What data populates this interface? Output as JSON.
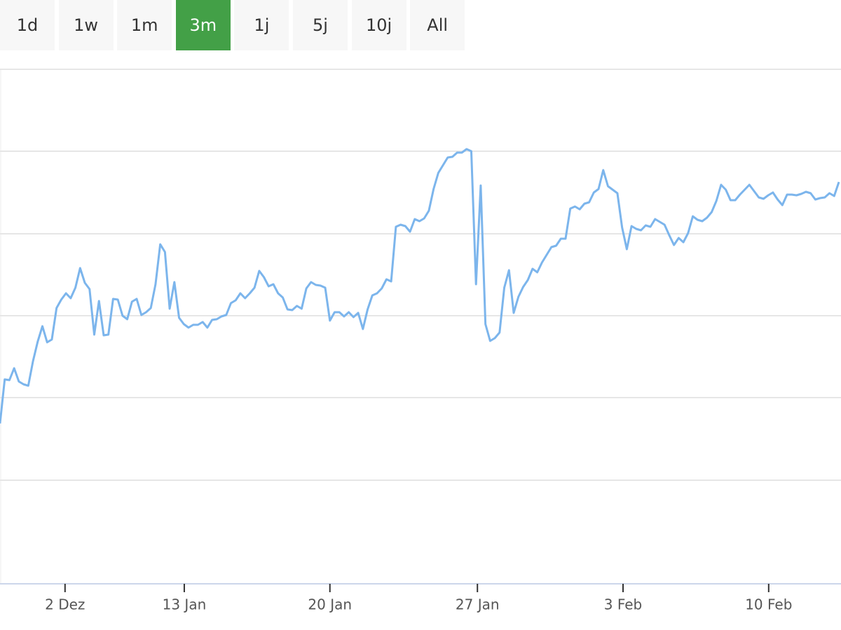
{
  "range_buttons": [
    "1d",
    "1w",
    "1m",
    "3m",
    "1j",
    "5j",
    "10j",
    "All"
  ],
  "active_range": 3,
  "chart_data": {
    "type": "line",
    "x": [
      0,
      1,
      2,
      3,
      4,
      5,
      6,
      7,
      8,
      9,
      10,
      11,
      12,
      13,
      14,
      15,
      16,
      17,
      18,
      19,
      20,
      21,
      22,
      23,
      24,
      25,
      26,
      27,
      28,
      29,
      30,
      31,
      32,
      33,
      34,
      35,
      36,
      37,
      38,
      39,
      40,
      41,
      42,
      43,
      44,
      45,
      46,
      47,
      48,
      49,
      50,
      51,
      52,
      53,
      54,
      55,
      56,
      57,
      58,
      59,
      60,
      61,
      62,
      63,
      64,
      65,
      66,
      67,
      68,
      69,
      70,
      71,
      72,
      73,
      74,
      75,
      76,
      77,
      78,
      79,
      80,
      81,
      82,
      83,
      84,
      85,
      86,
      87,
      88,
      89,
      90,
      91,
      92,
      93,
      94,
      95,
      96,
      97,
      98,
      99,
      100,
      101,
      102,
      103,
      104,
      105,
      106,
      107,
      108,
      109,
      110,
      111,
      112,
      113,
      114,
      115,
      116,
      117,
      118,
      119,
      120,
      121,
      122,
      123,
      124,
      125,
      126,
      127,
      128,
      129,
      130,
      131,
      132,
      133,
      134,
      135,
      136,
      137,
      138,
      139,
      140,
      141,
      142,
      143,
      144,
      145,
      146,
      147,
      148,
      149,
      150,
      151,
      152,
      153,
      154,
      155,
      156,
      157,
      158,
      159,
      160,
      161,
      162,
      163,
      164,
      165,
      166,
      167,
      168,
      169,
      170,
      171,
      172,
      173,
      174,
      175,
      176,
      177,
      178
    ],
    "series": [
      {
        "color": "#7cb5ec",
        "values": [
          229,
          292,
          291,
          308,
          289,
          285,
          283,
          318,
          346,
          368,
          345,
          349,
          394,
          406,
          415,
          408,
          423,
          451,
          430,
          421,
          356,
          404,
          355,
          356,
          407,
          406,
          383,
          378,
          403,
          407,
          384,
          388,
          394,
          428,
          485,
          474,
          393,
          431,
          380,
          371,
          366,
          370,
          370,
          374,
          366,
          377,
          378,
          382,
          384,
          401,
          405,
          415,
          408,
          415,
          423,
          447,
          438,
          425,
          428,
          415,
          409,
          392,
          391,
          397,
          393,
          422,
          431,
          427,
          426,
          423,
          376,
          388,
          388,
          382,
          388,
          381,
          387,
          364,
          392,
          412,
          415,
          422,
          435,
          432,
          510,
          513,
          511,
          503,
          521,
          518,
          522,
          533,
          564,
          587,
          598,
          609,
          610,
          616,
          616,
          621,
          618,
          428,
          569,
          371,
          347,
          351,
          359,
          423,
          448,
          387,
          410,
          424,
          434,
          450,
          445,
          459,
          470,
          481,
          483,
          493,
          493,
          536,
          539,
          535,
          543,
          545,
          559,
          564,
          591,
          568,
          563,
          558,
          509,
          478,
          511,
          507,
          505,
          512,
          510,
          521,
          517,
          513,
          498,
          484,
          494,
          488,
          501,
          525,
          520,
          518,
          523,
          531,
          547,
          570,
          563,
          548,
          548,
          556,
          563,
          570,
          561,
          552,
          550,
          555,
          559,
          549,
          541,
          556,
          556,
          555,
          557,
          560,
          558,
          549,
          551,
          552,
          558,
          554,
          574
        ]
      }
    ],
    "xlim": [
      0,
      178
    ],
    "xticks": [
      {
        "value": 13.8,
        "label": "2 Dez"
      },
      {
        "value": 39.1,
        "label": "13 Jan"
      },
      {
        "value": 70,
        "label": "20 Jan"
      },
      {
        "value": 101.3,
        "label": "27 Jan"
      },
      {
        "value": 132.2,
        "label": "3 Feb"
      },
      {
        "value": 163.1,
        "label": "10 Feb"
      }
    ],
    "ylim": [
      0,
      735
    ],
    "yticks": [
      148,
      266,
      383,
      500,
      618,
      735
    ],
    "ytick_labels": false,
    "grid": true
  }
}
